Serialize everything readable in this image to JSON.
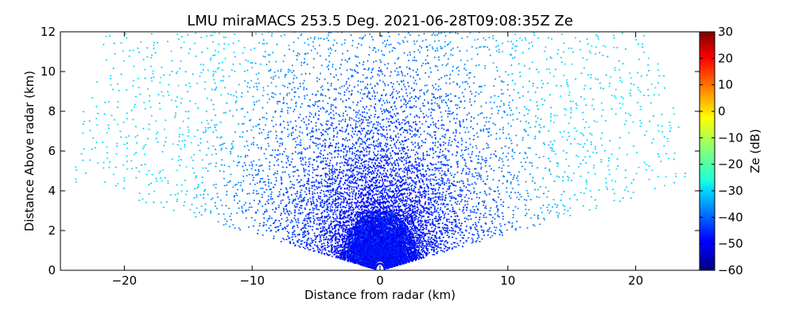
{
  "chart_data": {
    "type": "heatmap",
    "title": "LMU miraMACS 253.5 Deg. 2021-06-28T09:08:35Z  Ze",
    "xlabel": "Distance from radar (km)",
    "ylabel": "Distance Above radar  (km)",
    "xlim": [
      -25,
      25
    ],
    "ylim": [
      0,
      12
    ],
    "xticks": [
      -20,
      -10,
      0,
      10,
      20
    ],
    "yticks": [
      0,
      2,
      4,
      6,
      8,
      10,
      12
    ],
    "colorbar": {
      "label": "Ze (dB)",
      "range": [
        -60,
        30
      ],
      "ticks": [
        -60,
        -50,
        -40,
        -30,
        -20,
        -10,
        0,
        10,
        20,
        30
      ],
      "colormap": "jet"
    },
    "scan": {
      "elevation_min_deg": 10.5,
      "elevation_max_deg": 169.5,
      "max_range_km": 24.5
    },
    "field": {
      "near_radar_ze_db": -48,
      "mid_range_ze_db": -40,
      "far_range_ze_db": -30
    }
  }
}
